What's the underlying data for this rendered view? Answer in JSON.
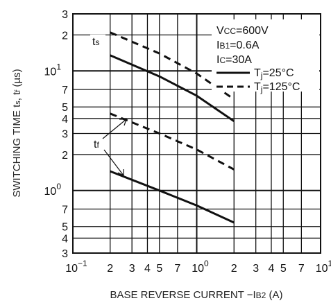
{
  "chart_data": {
    "type": "line",
    "xlabel": "BASE REVERSE CURRENT −IB2 (A)",
    "ylabel": "SWITCHING TIME ts, tf (µs)",
    "xscale": "log",
    "yscale": "log",
    "xlim": [
      0.1,
      10
    ],
    "ylim": [
      0.3,
      30
    ],
    "grid": true,
    "x_ticks": [
      {
        "v": 0.1,
        "m": "10",
        "e": "−1"
      },
      {
        "v": 0.2,
        "m": "2",
        "e": ""
      },
      {
        "v": 0.3,
        "m": "3",
        "e": ""
      },
      {
        "v": 0.4,
        "m": "4",
        "e": ""
      },
      {
        "v": 0.5,
        "m": "5",
        "e": ""
      },
      {
        "v": 0.7,
        "m": "7",
        "e": ""
      },
      {
        "v": 1,
        "m": "10",
        "e": "0"
      },
      {
        "v": 2,
        "m": "2",
        "e": ""
      },
      {
        "v": 3,
        "m": "3",
        "e": ""
      },
      {
        "v": 4,
        "m": "4",
        "e": ""
      },
      {
        "v": 5,
        "m": "5",
        "e": ""
      },
      {
        "v": 7,
        "m": "7",
        "e": ""
      },
      {
        "v": 10,
        "m": "10",
        "e": "1"
      }
    ],
    "y_ticks": [
      {
        "v": 0.3,
        "m": "3",
        "e": ""
      },
      {
        "v": 0.4,
        "m": "4",
        "e": ""
      },
      {
        "v": 0.5,
        "m": "5",
        "e": ""
      },
      {
        "v": 0.7,
        "m": "7",
        "e": ""
      },
      {
        "v": 1,
        "m": "10",
        "e": "0"
      },
      {
        "v": 2,
        "m": "2",
        "e": ""
      },
      {
        "v": 3,
        "m": "3",
        "e": ""
      },
      {
        "v": 4,
        "m": "4",
        "e": ""
      },
      {
        "v": 5,
        "m": "5",
        "e": ""
      },
      {
        "v": 7,
        "m": "7",
        "e": ""
      },
      {
        "v": 10,
        "m": "10",
        "e": "1"
      },
      {
        "v": 20,
        "m": "2",
        "e": ""
      },
      {
        "v": 30,
        "m": "3",
        "e": ""
      }
    ],
    "conditions": [
      "VCC=600V",
      "IB1=0.6A",
      "IC=30A"
    ],
    "legend": [
      {
        "label": "Tj=25°C",
        "style": "solid"
      },
      {
        "label": "Tj=125°C",
        "style": "dashed"
      }
    ],
    "legend_position": "top-right",
    "series": [
      {
        "group": "ts",
        "temp": "Tj=25°C",
        "style": "solid",
        "x": [
          0.2,
          0.5,
          1,
          2
        ],
        "y": [
          13.5,
          9,
          6.2,
          3.8
        ]
      },
      {
        "group": "ts",
        "temp": "Tj=125°C",
        "style": "dashed",
        "x": [
          0.2,
          0.5,
          1,
          2
        ],
        "y": [
          21,
          14,
          9.5,
          5.8
        ]
      },
      {
        "group": "tf",
        "temp": "Tj=25°C",
        "style": "solid",
        "x": [
          0.2,
          0.5,
          1,
          2
        ],
        "y": [
          1.45,
          1.0,
          0.75,
          0.54
        ]
      },
      {
        "group": "tf",
        "temp": "Tj=125°C",
        "style": "dashed",
        "x": [
          0.2,
          0.5,
          1,
          2
        ],
        "y": [
          4.4,
          3.0,
          2.2,
          1.5
        ]
      }
    ],
    "annotations": [
      "ts",
      "tf"
    ]
  }
}
